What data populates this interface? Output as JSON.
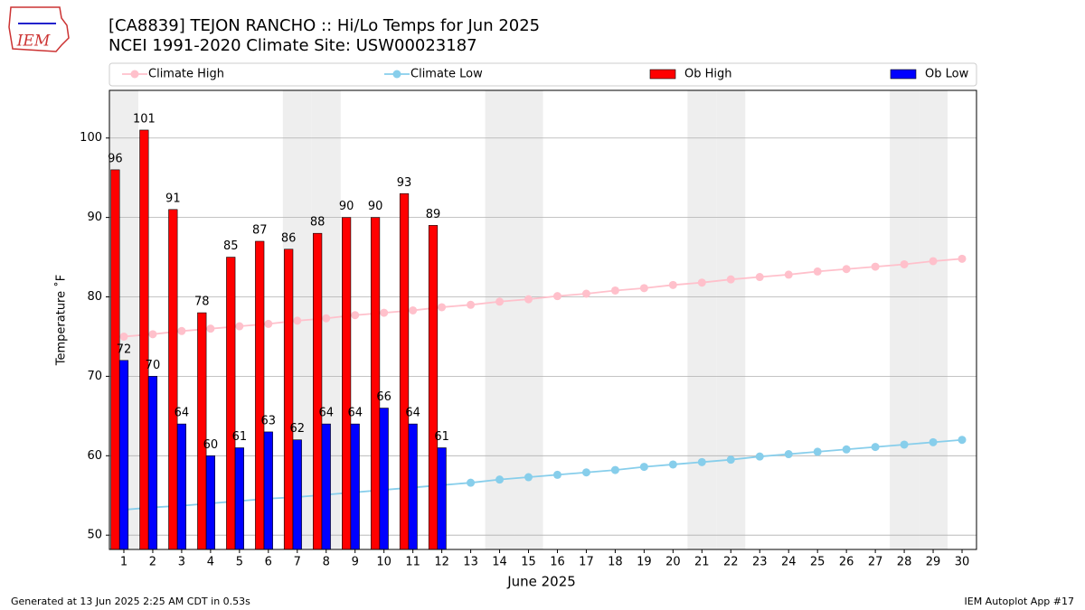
{
  "logo": "IEM",
  "footer_left": "Generated at 13 Jun 2025 2:25 AM CDT in 0.53s",
  "footer_right": "IEM Autoplot App #17",
  "chart_data": {
    "type": "combo",
    "title": "[CA8839] TEJON RANCHO :: Hi/Lo Temps for Jun 2025",
    "subtitle": "NCEI 1991-2020 Climate Site: USW00023187",
    "x_label": "June 2025",
    "y_label": "Temperature ˚F",
    "x": [
      1,
      2,
      3,
      4,
      5,
      6,
      7,
      8,
      9,
      10,
      11,
      12,
      13,
      14,
      15,
      16,
      17,
      18,
      19,
      20,
      21,
      22,
      23,
      24,
      25,
      26,
      27,
      28,
      29,
      30
    ],
    "xlim": [
      0.5,
      30.5
    ],
    "xticks": [
      1,
      2,
      3,
      4,
      5,
      6,
      7,
      8,
      9,
      10,
      11,
      12,
      13,
      14,
      15,
      16,
      17,
      18,
      19,
      20,
      21,
      22,
      23,
      24,
      25,
      26,
      27,
      28,
      29,
      30
    ],
    "ylim": [
      48.2,
      106
    ],
    "yticks": [
      50,
      60,
      70,
      80,
      90,
      100
    ],
    "grid": true,
    "shaded_days": [
      1,
      7,
      8,
      14,
      15,
      21,
      22,
      28,
      29
    ],
    "series": [
      {
        "name": "Climate High",
        "mark": "line",
        "color": "#ffc0cb",
        "values": [
          75.0,
          75.3,
          75.7,
          76.0,
          76.3,
          76.6,
          77.0,
          77.3,
          77.7,
          78.0,
          78.3,
          78.7,
          79.0,
          79.4,
          79.7,
          80.1,
          80.4,
          80.8,
          81.1,
          81.5,
          81.8,
          82.2,
          82.5,
          82.8,
          83.2,
          83.5,
          83.8,
          84.1,
          84.5,
          84.8
        ]
      },
      {
        "name": "Climate Low",
        "mark": "line",
        "color": "#87ceeb",
        "values": [
          53.2,
          53.5,
          53.7,
          54.0,
          54.3,
          54.6,
          54.8,
          55.1,
          55.4,
          55.7,
          56.0,
          56.3,
          56.6,
          57.0,
          57.3,
          57.6,
          57.9,
          58.2,
          58.6,
          58.9,
          59.2,
          59.5,
          59.9,
          60.2,
          60.5,
          60.8,
          61.1,
          61.4,
          61.7,
          62.0
        ]
      },
      {
        "name": "Ob High",
        "mark": "bar",
        "color": "#ff0000",
        "values": [
          96,
          101,
          91,
          78,
          85,
          87,
          86,
          88,
          90,
          90,
          93,
          89,
          null,
          null,
          null,
          null,
          null,
          null,
          null,
          null,
          null,
          null,
          null,
          null,
          null,
          null,
          null,
          null,
          null,
          null
        ]
      },
      {
        "name": "Ob Low",
        "mark": "bar",
        "color": "#0000ff",
        "values": [
          72,
          70,
          64,
          60,
          61,
          63,
          62,
          64,
          64,
          66,
          64,
          61,
          null,
          null,
          null,
          null,
          null,
          null,
          null,
          null,
          null,
          null,
          null,
          null,
          null,
          null,
          null,
          null,
          null,
          null
        ]
      }
    ]
  }
}
